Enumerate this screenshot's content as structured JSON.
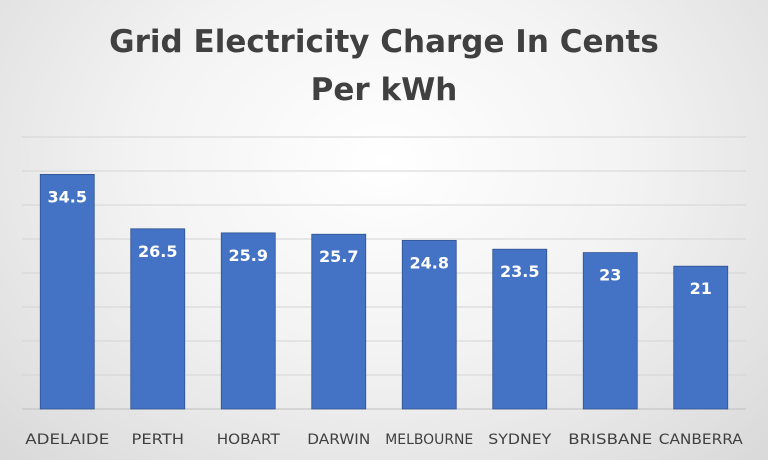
{
  "chart_data": {
    "type": "bar",
    "title": "Grid Electricity Charge In Cents Per kWh",
    "categories": [
      "ADELAIDE",
      "PERTH",
      "HOBART",
      "DARWIN",
      "MELBOURNE",
      "SYDNEY",
      "BRISBANE",
      "CANBERRA"
    ],
    "values": [
      34.5,
      26.5,
      25.9,
      25.7,
      24.8,
      23.5,
      23,
      21
    ],
    "data_labels": [
      "34.5",
      "26.5",
      "25.9",
      "25.7",
      "24.8",
      "23.5",
      "23",
      "21"
    ],
    "xlabel": "",
    "ylabel": "",
    "ylim": [
      0,
      40
    ],
    "grid": true,
    "legend": "none",
    "colors": {
      "bar_fill": "#4472c4",
      "bar_edge": "#2f528f",
      "grid": "#d4d4d4",
      "axis_line": "#bfbfbf",
      "title": "#404040",
      "tick_label": "#404040",
      "data_label": "#ffffff"
    }
  }
}
